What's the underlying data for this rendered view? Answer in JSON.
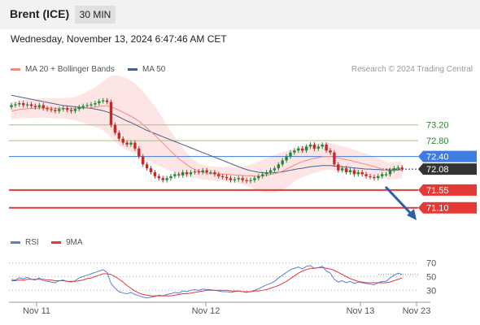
{
  "header": {
    "title": "Brent (ICE)",
    "timeframe": "30 MIN"
  },
  "datetime": "Wednesday, November 13, 2024 6:47:46 AM CET",
  "legend": {
    "ma20_label": "MA 20 + Bollinger Bands",
    "ma50_label": "MA 50",
    "rsi_label": "RSI",
    "rsi_ma_label": "9MA"
  },
  "credit": "Research © 2024 Trading Central",
  "colors": {
    "ma20": "#f08c84",
    "ma50": "#4a5f8f",
    "bb_fill": "#fde0e0",
    "up": "#1f8a3a",
    "down": "#c62828",
    "support": "#e53935",
    "resistance": "#9ccc65",
    "pivot": "#3f7be0",
    "last": "#333333",
    "rsi": "#5b7fd6",
    "rsi_ma": "#e53935"
  },
  "chart_data": {
    "type": "candlestick",
    "price_axis": {
      "min": 70.6,
      "max": 74.1
    },
    "levels": [
      {
        "label": "73.20",
        "value": 73.2,
        "kind": "resistance"
      },
      {
        "label": "72.80",
        "value": 72.8,
        "kind": "resistance"
      },
      {
        "label": "72.40",
        "value": 72.4,
        "kind": "pivot"
      },
      {
        "label": "72.08",
        "value": 72.08,
        "kind": "last"
      },
      {
        "label": "71.55",
        "value": 71.55,
        "kind": "support"
      },
      {
        "label": "71.10",
        "value": 71.1,
        "kind": "support"
      }
    ],
    "x_ticks": [
      "Nov 11",
      "Nov 12",
      "Nov 13",
      "Nov 23"
    ],
    "rsi_axis": {
      "min": 15,
      "max": 80,
      "ticks": [
        "70",
        "50",
        "30"
      ]
    },
    "close": [
      73.7,
      73.72,
      73.75,
      73.7,
      73.72,
      73.68,
      73.65,
      73.7,
      73.62,
      73.6,
      73.58,
      73.55,
      73.6,
      73.62,
      73.58,
      73.55,
      73.6,
      73.65,
      73.68,
      73.7,
      73.72,
      73.75,
      73.8,
      73.82,
      73.78,
      73.2,
      73.0,
      72.85,
      72.75,
      72.7,
      72.75,
      72.6,
      72.4,
      72.2,
      72.1,
      72.0,
      71.9,
      71.85,
      71.8,
      71.85,
      71.9,
      71.95,
      71.92,
      72.0,
      71.95,
      72.0,
      72.02,
      72.0,
      72.05,
      72.0,
      72.0,
      71.95,
      71.9,
      71.88,
      71.85,
      71.8,
      71.82,
      71.85,
      71.8,
      71.78,
      71.8,
      71.85,
      71.9,
      71.95,
      72.0,
      72.05,
      72.1,
      72.2,
      72.3,
      72.4,
      72.5,
      72.55,
      72.6,
      72.55,
      72.65,
      72.7,
      72.6,
      72.65,
      72.7,
      72.55,
      72.5,
      72.2,
      72.05,
      72.1,
      72.0,
      72.05,
      71.95,
      72.0,
      71.95,
      71.9,
      71.88,
      71.85,
      71.9,
      71.95,
      71.95,
      72.05,
      72.1,
      72.12,
      72.08
    ],
    "ma20": [
      73.55,
      73.57,
      73.59,
      73.6,
      73.61,
      73.62,
      73.62,
      73.63,
      73.63,
      73.63,
      73.63,
      73.62,
      73.62,
      73.62,
      73.62,
      73.61,
      73.61,
      73.62,
      73.62,
      73.63,
      73.64,
      73.65,
      73.67,
      73.68,
      73.68,
      73.66,
      73.62,
      73.57,
      73.52,
      73.47,
      73.42,
      73.36,
      73.29,
      73.21,
      73.12,
      73.03,
      72.94,
      72.84,
      72.74,
      72.64,
      72.53,
      72.44,
      72.34,
      72.27,
      72.19,
      72.12,
      72.07,
      72.03,
      72.0,
      71.98,
      71.97,
      71.96,
      71.96,
      71.95,
      71.95,
      71.94,
      71.93,
      71.93,
      71.92,
      71.91,
      71.91,
      71.9,
      71.9,
      71.91,
      71.92,
      71.94,
      71.96,
      71.99,
      72.03,
      72.08,
      72.13,
      72.18,
      72.23,
      72.27,
      72.3,
      72.33,
      72.35,
      72.37,
      72.39,
      72.4,
      72.4,
      72.38,
      72.36,
      72.34,
      72.32,
      72.3,
      72.27,
      72.25,
      72.22,
      72.2,
      72.17,
      72.14,
      72.11,
      72.08,
      72.05,
      72.03,
      72.04,
      72.05,
      72.06
    ],
    "ma50": [
      73.95,
      73.93,
      73.91,
      73.89,
      73.87,
      73.85,
      73.83,
      73.81,
      73.79,
      73.77,
      73.75,
      73.73,
      73.71,
      73.69,
      73.68,
      73.67,
      73.66,
      73.65,
      73.64,
      73.63,
      73.62,
      73.6,
      73.58,
      73.56,
      73.53,
      73.49,
      73.45,
      73.4,
      73.35,
      73.3,
      73.26,
      73.21,
      73.16,
      73.11,
      73.06,
      73.02,
      72.98,
      72.94,
      72.9,
      72.86,
      72.82,
      72.78,
      72.74,
      72.7,
      72.66,
      72.62,
      72.58,
      72.54,
      72.5,
      72.46,
      72.42,
      72.38,
      72.34,
      72.3,
      72.26,
      72.22,
      72.18,
      72.14,
      72.1,
      72.07,
      72.04,
      72.02,
      72.0,
      71.99,
      71.98,
      71.98,
      71.99,
      72.0,
      72.01,
      72.03,
      72.05,
      72.07,
      72.09,
      72.1,
      72.12,
      72.14,
      72.15,
      72.16,
      72.17,
      72.17,
      72.17,
      72.16,
      72.15,
      72.14,
      72.13,
      72.12,
      72.11,
      72.1,
      72.09,
      72.08,
      72.08,
      72.07,
      72.07,
      72.06,
      72.06,
      72.06,
      72.06,
      72.06,
      72.06
    ],
    "bb_width": [
      0.22,
      0.22,
      0.23,
      0.23,
      0.24,
      0.24,
      0.24,
      0.24,
      0.25,
      0.25,
      0.25,
      0.26,
      0.26,
      0.26,
      0.27,
      0.28,
      0.3,
      0.33,
      0.37,
      0.42,
      0.46,
      0.5,
      0.55,
      0.62,
      0.7,
      0.78,
      0.84,
      0.88,
      0.9,
      0.91,
      0.9,
      0.89,
      0.87,
      0.84,
      0.81,
      0.77,
      0.73,
      0.68,
      0.62,
      0.56,
      0.5,
      0.45,
      0.4,
      0.35,
      0.3,
      0.25,
      0.22,
      0.2,
      0.19,
      0.18,
      0.18,
      0.18,
      0.18,
      0.18,
      0.19,
      0.19,
      0.2,
      0.21,
      0.23,
      0.26,
      0.29,
      0.33,
      0.37,
      0.41,
      0.44,
      0.47,
      0.48,
      0.49,
      0.48,
      0.46,
      0.44,
      0.42,
      0.41,
      0.4,
      0.39,
      0.38,
      0.37,
      0.36,
      0.35,
      0.34,
      0.34,
      0.33,
      0.33,
      0.32,
      0.32,
      0.31,
      0.3,
      0.29,
      0.28,
      0.27,
      0.26,
      0.25,
      0.24,
      0.23,
      0.22,
      0.22,
      0.22,
      0.22,
      0.22
    ],
    "rsi": [
      46,
      45,
      48,
      47,
      49,
      46,
      45,
      48,
      44,
      43,
      42,
      41,
      44,
      45,
      43,
      42,
      44,
      48,
      50,
      52,
      54,
      56,
      58,
      60,
      56,
      40,
      33,
      28,
      26,
      25,
      27,
      24,
      22,
      20,
      19,
      20,
      21,
      23,
      22,
      24,
      25,
      27,
      26,
      29,
      28,
      30,
      31,
      30,
      32,
      31,
      31,
      30,
      29,
      28,
      28,
      27,
      28,
      29,
      28,
      27,
      28,
      30,
      32,
      35,
      38,
      40,
      43,
      48,
      52,
      56,
      60,
      62,
      64,
      61,
      65,
      66,
      62,
      63,
      65,
      58,
      55,
      46,
      42,
      44,
      41,
      43,
      40,
      42,
      41,
      40,
      39,
      38,
      41,
      43,
      43,
      48,
      52,
      55,
      53
    ],
    "rsi_ma": [
      44,
      44,
      45,
      45,
      46,
      46,
      46,
      46,
      46,
      45,
      45,
      44,
      44,
      44,
      43,
      43,
      43,
      44,
      45,
      47,
      48,
      50,
      52,
      54,
      54,
      53,
      50,
      46,
      42,
      37,
      33,
      29,
      26,
      24,
      23,
      22,
      22,
      22,
      22,
      22,
      22,
      23,
      24,
      25,
      25,
      26,
      27,
      28,
      29,
      30,
      30,
      30,
      30,
      30,
      30,
      29,
      29,
      29,
      28,
      28,
      28,
      29,
      29,
      30,
      31,
      33,
      35,
      37,
      40,
      43,
      47,
      51,
      55,
      58,
      60,
      62,
      62,
      63,
      63,
      62,
      61,
      59,
      56,
      53,
      50,
      47,
      45,
      43,
      42,
      41,
      41,
      41,
      41,
      41,
      41,
      42,
      44,
      46,
      48
    ]
  }
}
